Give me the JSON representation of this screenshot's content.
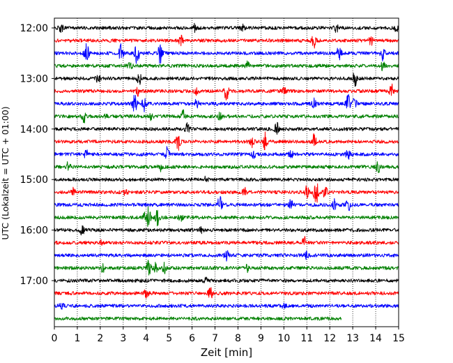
{
  "chart_data": {
    "type": "line",
    "title": "",
    "xlabel": "Zeit  [min]",
    "ylabel": "UTC (Lokalzeit = UTC + 01:00)",
    "xlim": [
      0,
      15
    ],
    "x_ticks": [
      "0",
      "1",
      "2",
      "3",
      "4",
      "5",
      "6",
      "7",
      "8",
      "9",
      "10",
      "11",
      "12",
      "13",
      "14",
      "15"
    ],
    "y_ticks": [
      "12:00",
      "13:00",
      "14:00",
      "15:00",
      "16:00",
      "17:00"
    ],
    "x_grid": "dotted vertical lines at every minute",
    "line_colors": [
      "#000000",
      "#ff0000",
      "#0000ff",
      "#008000"
    ],
    "color_cycle": [
      "black",
      "red",
      "blue",
      "green"
    ],
    "traces": [
      {
        "start": "12:00",
        "color": "black",
        "end_min": 15,
        "events": [
          [
            0.3,
            0.6
          ],
          [
            6.1,
            0.5
          ],
          [
            8.2,
            0.5
          ],
          [
            12.3,
            0.8
          ],
          [
            14.9,
            0.5
          ]
        ]
      },
      {
        "start": "12:15",
        "color": "red",
        "end_min": 15,
        "events": [
          [
            5.5,
            1.0
          ],
          [
            11.3,
            1.1
          ],
          [
            13.8,
            0.6
          ]
        ]
      },
      {
        "start": "12:30",
        "color": "blue",
        "end_min": 15,
        "events": [
          [
            1.4,
            1.5
          ],
          [
            2.9,
            1.4
          ],
          [
            3.6,
            1.6
          ],
          [
            4.6,
            1.7
          ],
          [
            12.4,
            1.0
          ],
          [
            14.3,
            1.0
          ]
        ]
      },
      {
        "start": "12:45",
        "color": "green",
        "end_min": 15,
        "events": [
          [
            3.3,
            0.5
          ],
          [
            8.4,
            0.6
          ],
          [
            14.3,
            0.6
          ]
        ]
      },
      {
        "start": "13:00",
        "color": "black",
        "end_min": 15,
        "events": [
          [
            1.9,
            0.5
          ],
          [
            3.7,
            0.9
          ],
          [
            13.1,
            2.0
          ]
        ]
      },
      {
        "start": "13:15",
        "color": "red",
        "end_min": 15,
        "events": [
          [
            3.6,
            0.8
          ],
          [
            6.2,
            0.5
          ],
          [
            7.5,
            1.4
          ],
          [
            10.0,
            0.6
          ],
          [
            14.7,
            1.1
          ]
        ]
      },
      {
        "start": "13:30",
        "color": "blue",
        "end_min": 15,
        "events": [
          [
            3.5,
            1.4
          ],
          [
            3.9,
            1.2
          ],
          [
            6.2,
            0.6
          ],
          [
            11.3,
            0.7
          ],
          [
            12.8,
            1.3
          ],
          [
            13.1,
            1.0
          ]
        ]
      },
      {
        "start": "13:45",
        "color": "green",
        "end_min": 15,
        "events": [
          [
            1.3,
            1.1
          ],
          [
            2.2,
            0.5
          ],
          [
            4.2,
            0.6
          ],
          [
            5.6,
            1.0
          ],
          [
            7.2,
            0.5
          ]
        ]
      },
      {
        "start": "14:00",
        "color": "black",
        "end_min": 15,
        "events": [
          [
            5.8,
            0.8
          ],
          [
            9.7,
            1.3
          ]
        ]
      },
      {
        "start": "14:15",
        "color": "red",
        "end_min": 15,
        "events": [
          [
            5.4,
            1.2
          ],
          [
            8.6,
            0.9
          ],
          [
            9.2,
            1.6
          ],
          [
            11.3,
            1.2
          ]
        ]
      },
      {
        "start": "14:30",
        "color": "blue",
        "end_min": 15,
        "events": [
          [
            1.4,
            0.8
          ],
          [
            4.9,
            1.1
          ],
          [
            8.7,
            0.6
          ],
          [
            10.3,
            0.6
          ],
          [
            12.8,
            0.8
          ]
        ]
      },
      {
        "start": "14:45",
        "color": "green",
        "end_min": 15,
        "events": [
          [
            0.6,
            0.7
          ],
          [
            4.6,
            0.7
          ],
          [
            14.1,
            0.9
          ]
        ]
      },
      {
        "start": "15:00",
        "color": "black",
        "end_min": 15,
        "events": [
          [
            6.6,
            0.4
          ]
        ]
      },
      {
        "start": "15:15",
        "color": "red",
        "end_min": 15,
        "events": [
          [
            0.8,
            0.6
          ],
          [
            3.1,
            0.5
          ],
          [
            8.3,
            0.8
          ],
          [
            11.0,
            0.9
          ],
          [
            11.4,
            2.4
          ],
          [
            11.8,
            0.9
          ]
        ]
      },
      {
        "start": "15:30",
        "color": "blue",
        "end_min": 15,
        "events": [
          [
            7.2,
            1.3
          ],
          [
            10.3,
            0.7
          ],
          [
            12.2,
            1.0
          ],
          [
            12.8,
            0.9
          ]
        ]
      },
      {
        "start": "15:45",
        "color": "green",
        "end_min": 15,
        "events": [
          [
            3.9,
            0.8
          ],
          [
            4.1,
            1.6
          ],
          [
            4.5,
            1.3
          ],
          [
            5.5,
            0.6
          ]
        ]
      },
      {
        "start": "16:00",
        "color": "black",
        "end_min": 15,
        "events": [
          [
            1.2,
            0.8
          ],
          [
            6.4,
            0.4
          ]
        ]
      },
      {
        "start": "16:15",
        "color": "red",
        "end_min": 15,
        "events": [
          [
            2.0,
            0.4
          ],
          [
            10.9,
            0.9
          ]
        ]
      },
      {
        "start": "16:30",
        "color": "blue",
        "end_min": 15,
        "events": [
          [
            7.5,
            0.8
          ],
          [
            11.0,
            0.5
          ]
        ]
      },
      {
        "start": "16:45",
        "color": "green",
        "end_min": 15,
        "events": [
          [
            2.1,
            0.6
          ],
          [
            4.1,
            1.3
          ],
          [
            4.4,
            0.9
          ],
          [
            4.8,
            0.8
          ],
          [
            8.4,
            0.6
          ]
        ]
      },
      {
        "start": "17:00",
        "color": "black",
        "end_min": 15,
        "events": [
          [
            6.6,
            0.4
          ]
        ]
      },
      {
        "start": "17:15",
        "color": "red",
        "end_min": 15,
        "events": [
          [
            4.0,
            0.6
          ],
          [
            6.8,
            0.9
          ]
        ]
      },
      {
        "start": "17:30",
        "color": "blue",
        "end_min": 15,
        "events": [
          [
            0.3,
            0.4
          ],
          [
            10.0,
            0.3
          ]
        ]
      },
      {
        "start": "17:45",
        "color": "green",
        "end_min": 12.5,
        "events": []
      }
    ]
  }
}
